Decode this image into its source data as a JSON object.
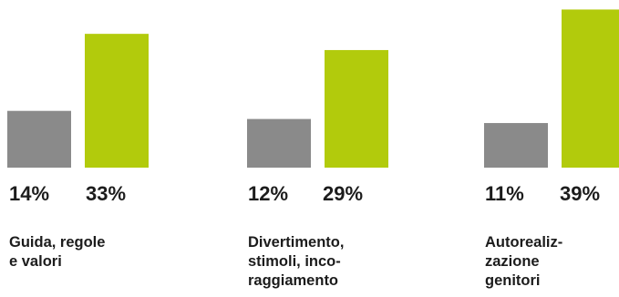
{
  "colors": {
    "gray_bar": "#8a8a8a",
    "green_bar": "#b2cb0c",
    "text": "#1c1c1c"
  },
  "chart_data": {
    "type": "bar",
    "categories": [
      "Guida, regole\ne valori",
      "Divertimento,\nstimoli, inco-\nraggiamento",
      "Autorealiz-\nzazione\ngenitori"
    ],
    "series": [
      {
        "values": [
          14,
          12,
          11
        ],
        "labels": [
          "14%",
          "12%",
          "11%"
        ],
        "color": "#8a8a8a"
      },
      {
        "values": [
          33,
          29,
          39
        ],
        "labels": [
          "33%",
          "29%",
          "39%"
        ],
        "color": "#b2cb0c"
      }
    ],
    "title": "",
    "xlabel": "",
    "ylabel": "",
    "grid": false,
    "legend": "none"
  }
}
